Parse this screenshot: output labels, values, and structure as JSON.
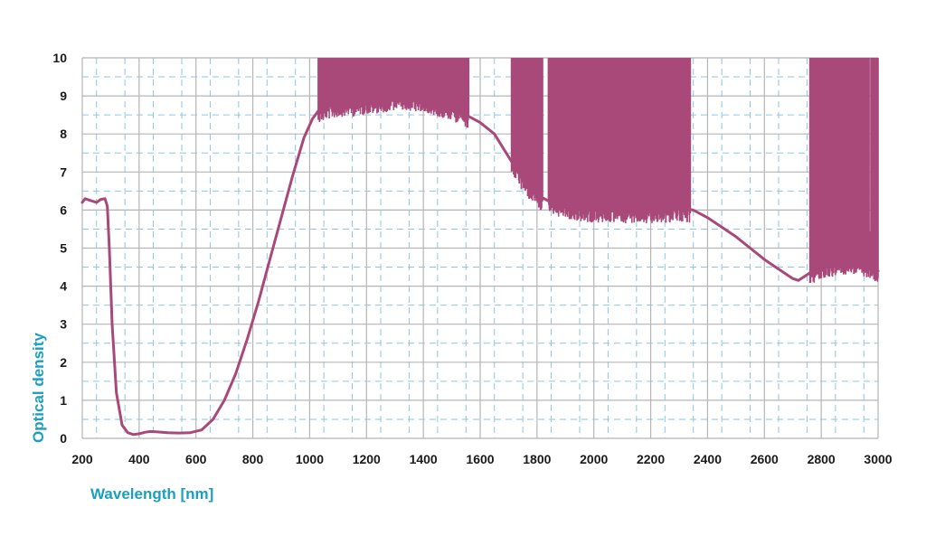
{
  "chart_data": {
    "type": "line",
    "title": "",
    "xlabel": "Wavelength [nm]",
    "ylabel": "Optical density",
    "xlim": [
      200,
      3000
    ],
    "ylim": [
      0,
      10
    ],
    "x_ticks": [
      200,
      400,
      600,
      800,
      1000,
      1200,
      1400,
      1600,
      1800,
      2000,
      2200,
      2400,
      2600,
      2800,
      3000
    ],
    "y_ticks": [
      0,
      1,
      2,
      3,
      4,
      5,
      6,
      7,
      8,
      9,
      10
    ],
    "grid": true,
    "legend": "none",
    "colors": {
      "series": "#a8497a",
      "axis_title": "#1a9fc0",
      "grid_major": "#b5b5b5",
      "grid_minor": "#8cc6e6"
    },
    "series": [
      {
        "x": [
          200,
          210,
          230,
          250,
          265,
          280,
          288,
          295,
          305,
          320,
          340,
          360,
          380,
          400,
          420,
          440,
          460,
          500,
          540,
          580,
          620,
          660,
          700,
          740,
          780,
          820,
          860,
          900,
          940,
          980,
          1010,
          1030,
          1050,
          1100,
          1150,
          1200,
          1250,
          1300,
          1350,
          1400,
          1450,
          1500,
          1550,
          1600,
          1650,
          1700,
          1750,
          1800,
          1850,
          1900,
          1950,
          2000,
          2050,
          2100,
          2150,
          2200,
          2250,
          2300,
          2350,
          2400,
          2450,
          2500,
          2550,
          2600,
          2650,
          2700,
          2720,
          2750,
          2800,
          2850,
          2900,
          2950,
          3000
        ],
        "y": [
          6.2,
          6.3,
          6.25,
          6.2,
          6.28,
          6.3,
          6.1,
          5.0,
          3.0,
          1.2,
          0.35,
          0.15,
          0.1,
          0.12,
          0.16,
          0.18,
          0.17,
          0.15,
          0.14,
          0.15,
          0.22,
          0.5,
          1.0,
          1.7,
          2.6,
          3.6,
          4.7,
          5.8,
          6.9,
          7.9,
          8.4,
          8.6,
          8.7,
          8.8,
          8.8,
          8.85,
          8.9,
          8.95,
          8.95,
          8.9,
          8.8,
          8.7,
          8.5,
          8.3,
          8.0,
          7.4,
          6.8,
          6.4,
          6.2,
          6.1,
          6.05,
          6.0,
          6.0,
          6.0,
          6.0,
          6.0,
          6.0,
          6.05,
          6.0,
          5.8,
          5.55,
          5.3,
          5.0,
          4.7,
          4.45,
          4.2,
          4.15,
          4.3,
          4.55,
          4.6,
          4.65,
          4.6,
          4.4
        ]
      }
    ]
  }
}
